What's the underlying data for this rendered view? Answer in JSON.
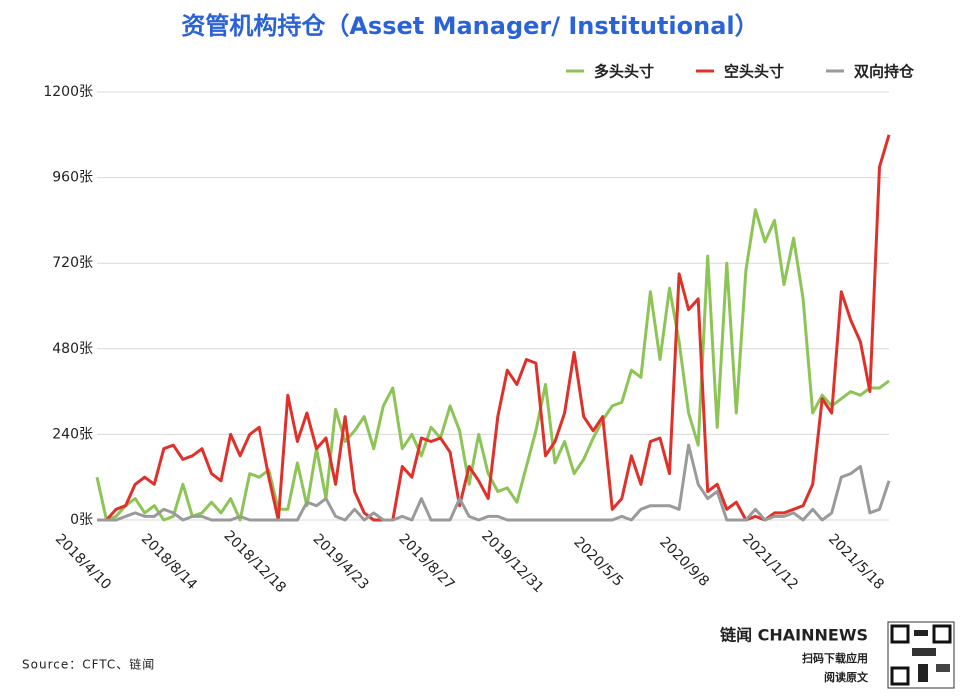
{
  "chart_data": {
    "type": "line",
    "title": "资管机构持仓（Asset Manager/ Institutional）",
    "source": "Source：CFTC、链闻",
    "brand": "链闻 CHAINNEWS",
    "brand_lines": [
      "扫码下载应用",
      "阅读原文"
    ],
    "categories": [
      "2018/4/10",
      null,
      null,
      null,
      null,
      null,
      null,
      null,
      null,
      "2018/8/14",
      null,
      null,
      null,
      null,
      null,
      null,
      null,
      null,
      "2018/12/18",
      null,
      null,
      null,
      null,
      null,
      null,
      null,
      null,
      "2019/4/23",
      null,
      null,
      null,
      null,
      null,
      null,
      null,
      null,
      "2019/8/27",
      null,
      null,
      null,
      null,
      null,
      null,
      null,
      null,
      "2019/12/31",
      null,
      null,
      null,
      null,
      null,
      null,
      null,
      null,
      "2020/5/5",
      null,
      null,
      null,
      null,
      null,
      null,
      null,
      null,
      "2020/9/8",
      null,
      null,
      null,
      null,
      null,
      null,
      null,
      null,
      "2021/1/12",
      null,
      null,
      null,
      null,
      null,
      null,
      null,
      null,
      "2021/5/18",
      null,
      null
    ],
    "series": [
      {
        "name": "多头头寸",
        "color": "#8dc456",
        "values": [
          120,
          0,
          10,
          40,
          60,
          20,
          40,
          0,
          10,
          100,
          10,
          20,
          50,
          20,
          60,
          0,
          130,
          120,
          140,
          30,
          30,
          160,
          40,
          200,
          60,
          310,
          220,
          250,
          290,
          200,
          320,
          370,
          200,
          240,
          180,
          260,
          230,
          320,
          250,
          100,
          240,
          130,
          80,
          90,
          50,
          150,
          250,
          380,
          160,
          220,
          130,
          170,
          230,
          280,
          320,
          330,
          420,
          400,
          640,
          450,
          650,
          500,
          300,
          210,
          740,
          260,
          720,
          300,
          700,
          870,
          780,
          840,
          660,
          790,
          620,
          300,
          350,
          320,
          340,
          360,
          350,
          370,
          370,
          390
        ]
      },
      {
        "name": "空头头寸",
        "color": "#e0302a",
        "values": [
          0,
          0,
          30,
          40,
          100,
          120,
          100,
          200,
          210,
          170,
          180,
          200,
          130,
          110,
          240,
          180,
          240,
          260,
          120,
          0,
          350,
          220,
          300,
          200,
          230,
          100,
          290,
          80,
          20,
          0,
          0,
          0,
          150,
          120,
          230,
          220,
          230,
          190,
          40,
          150,
          110,
          60,
          290,
          420,
          380,
          450,
          440,
          180,
          220,
          300,
          470,
          290,
          250,
          290,
          30,
          60,
          180,
          100,
          220,
          230,
          130,
          690,
          590,
          620,
          80,
          100,
          30,
          50,
          0,
          10,
          0,
          20,
          20,
          30,
          40,
          100,
          340,
          300,
          640,
          560,
          500,
          360,
          990,
          1080
        ]
      },
      {
        "name": "双向持仓",
        "color": "#9a9a9a",
        "values": [
          0,
          0,
          0,
          10,
          20,
          10,
          10,
          30,
          20,
          0,
          10,
          10,
          0,
          0,
          0,
          10,
          0,
          0,
          0,
          0,
          0,
          0,
          50,
          40,
          60,
          10,
          0,
          30,
          0,
          20,
          0,
          0,
          10,
          0,
          60,
          0,
          0,
          0,
          60,
          10,
          0,
          10,
          10,
          0,
          0,
          0,
          0,
          0,
          0,
          0,
          0,
          0,
          0,
          0,
          0,
          10,
          0,
          30,
          40,
          40,
          40,
          30,
          210,
          100,
          60,
          80,
          0,
          0,
          0,
          30,
          0,
          10,
          10,
          20,
          0,
          30,
          0,
          20,
          120,
          130,
          150,
          20,
          30,
          110
        ]
      }
    ],
    "ylim": [
      0,
      1200
    ],
    "yticks": [
      {
        "value": 0,
        "label": "0张"
      },
      {
        "value": 240,
        "label": "240张"
      },
      {
        "value": 480,
        "label": "480张"
      },
      {
        "value": 720,
        "label": "720张"
      },
      {
        "value": 960,
        "label": "960张"
      },
      {
        "value": 1200,
        "label": "1200张"
      }
    ],
    "grid": true,
    "legend": "top-right"
  }
}
